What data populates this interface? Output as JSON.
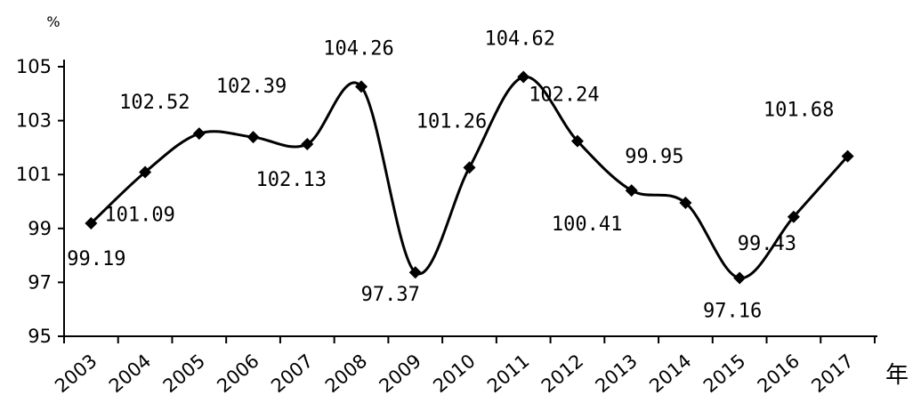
{
  "chart_data": {
    "type": "line",
    "title": "",
    "y_unit": "%",
    "x_unit": "年",
    "ylim": [
      95,
      105
    ],
    "yticks": [
      95,
      97,
      99,
      101,
      103,
      105
    ],
    "grid": false,
    "smooth": true,
    "marker": "diamond",
    "color": "#000000",
    "categories": [
      "2003",
      "2004",
      "2005",
      "2006",
      "2007",
      "2008",
      "2009",
      "2010",
      "2011",
      "2012",
      "2013",
      "2014",
      "2015",
      "2016",
      "2017"
    ],
    "values": [
      99.19,
      101.09,
      102.52,
      102.39,
      102.13,
      104.26,
      97.37,
      101.26,
      104.62,
      102.24,
      100.41,
      99.95,
      97.16,
      99.43,
      101.68
    ],
    "data_labels": [
      "99.19",
      "101.09",
      "102.52",
      "102.39",
      "102.13",
      "104.26",
      "97.37",
      "101.26",
      "104.62",
      "102.24",
      "100.41",
      "99.95",
      "97.16",
      "99.43",
      "101.68"
    ]
  }
}
